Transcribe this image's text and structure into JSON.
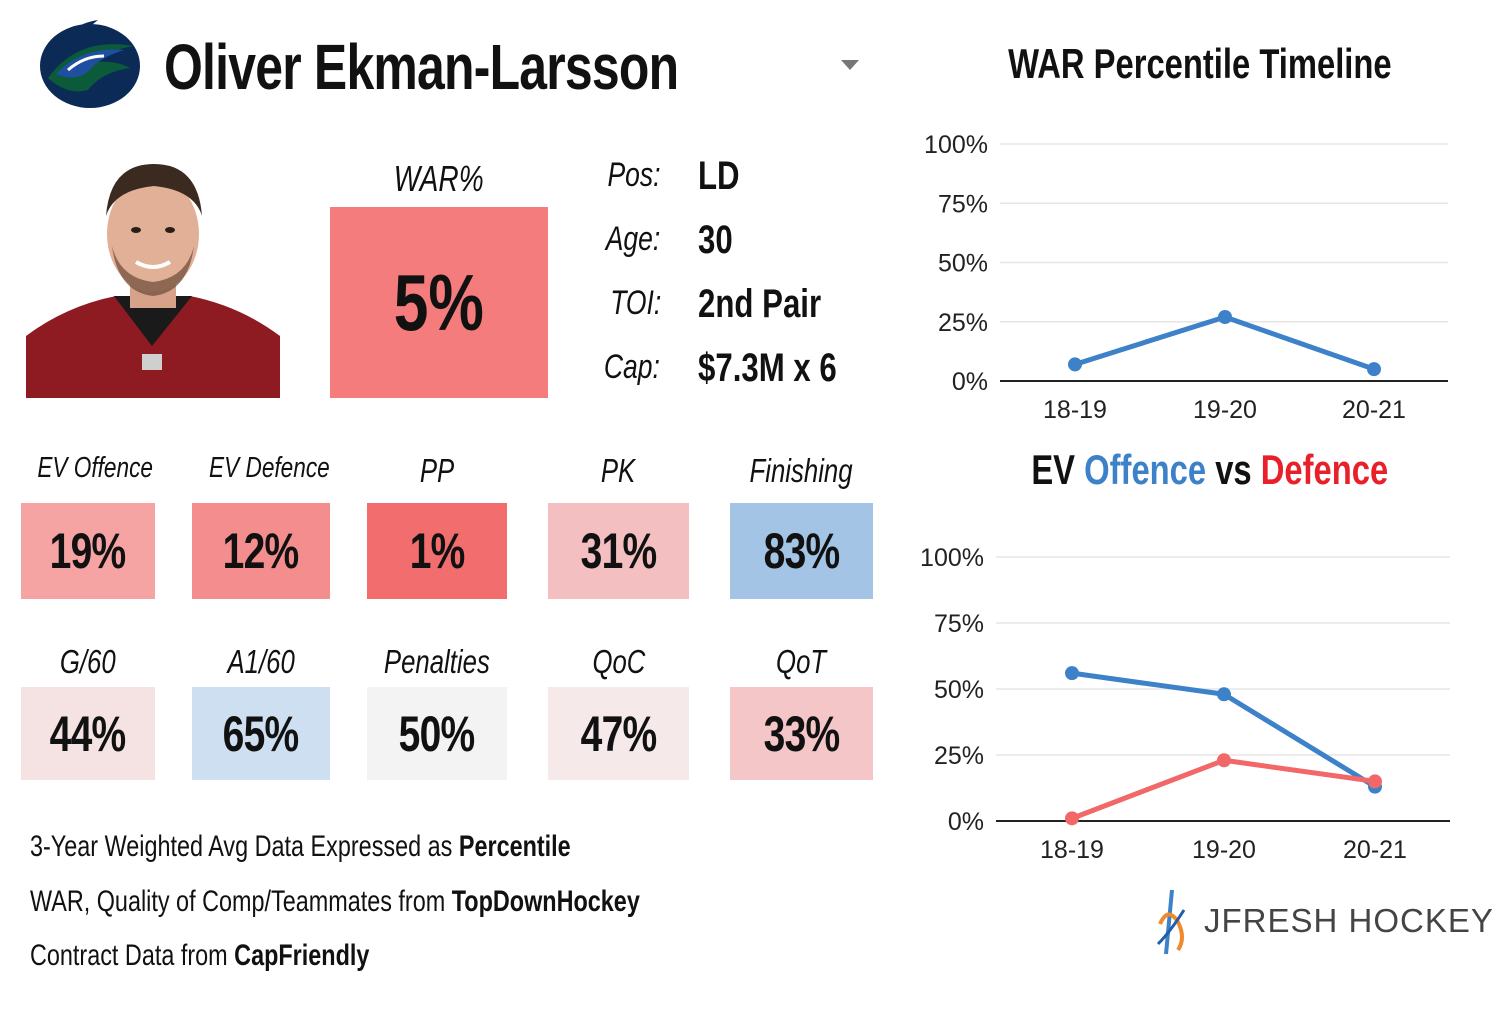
{
  "player": {
    "name": "Oliver Ekman-Larsson",
    "war_label": "WAR%",
    "war_value": "5%",
    "info": [
      {
        "key": "Pos:",
        "value": "LD"
      },
      {
        "key": "Age:",
        "value": "30"
      },
      {
        "key": "TOI:",
        "value": "2nd Pair"
      },
      {
        "key": "Cap:",
        "value": "$7.3M x 6"
      }
    ]
  },
  "stats_row1": [
    {
      "label": "EV Offence",
      "value": "19%",
      "color": "#f6a3a3"
    },
    {
      "label": "EV Defence",
      "value": "12%",
      "color": "#f48d8d"
    },
    {
      "label": "PP",
      "value": "1%",
      "color": "#f26d6d"
    },
    {
      "label": "PK",
      "value": "31%",
      "color": "#f4bfc0"
    },
    {
      "label": "Finishing",
      "value": "83%",
      "color": "#a4c4e6"
    }
  ],
  "stats_row2": [
    {
      "label": "G/60",
      "value": "44%",
      "color": "#f5e3e4"
    },
    {
      "label": "A1/60",
      "value": "65%",
      "color": "#cddff0"
    },
    {
      "label": "Penalties",
      "value": "50%",
      "color": "#f3f3f3"
    },
    {
      "label": "QoC",
      "value": "47%",
      "color": "#f5e9ea"
    },
    {
      "label": "QoT",
      "value": "33%",
      "color": "#f4c6c8"
    }
  ],
  "footer": {
    "line1": {
      "text": "3-Year Weighted Avg Data Expressed as ",
      "bold": "Percentile"
    },
    "line2": {
      "text": "WAR, Quality of Comp/Teammates from ",
      "bold": "TopDownHockey"
    },
    "line3": {
      "text": "Contract Data from ",
      "bold": "CapFriendly"
    }
  },
  "brand": "JFRESH HOCKEY",
  "colors": {
    "offence": "#3d82c9",
    "defence": "#f26868",
    "defence_title": "#e8202a",
    "war_line": "#3d82c9"
  },
  "chart_data": [
    {
      "type": "line",
      "title": "WAR Percentile Timeline",
      "categories": [
        "18-19",
        "19-20",
        "20-21"
      ],
      "series": [
        {
          "values": [
            7,
            27,
            5
          ]
        }
      ],
      "ylim": [
        0,
        100
      ],
      "yticks": [
        "0%",
        "25%",
        "50%",
        "75%",
        "100%"
      ],
      "grid": true
    },
    {
      "type": "line",
      "title_parts": [
        "EV",
        "Offence",
        "vs",
        "Defence"
      ],
      "categories": [
        "18-19",
        "19-20",
        "20-21"
      ],
      "series": [
        {
          "values": [
            56,
            48,
            13
          ]
        },
        {
          "values": [
            1,
            23,
            15
          ]
        }
      ],
      "ylim": [
        0,
        100
      ],
      "yticks": [
        "0%",
        "25%",
        "50%",
        "75%",
        "100%"
      ],
      "grid": true
    }
  ]
}
